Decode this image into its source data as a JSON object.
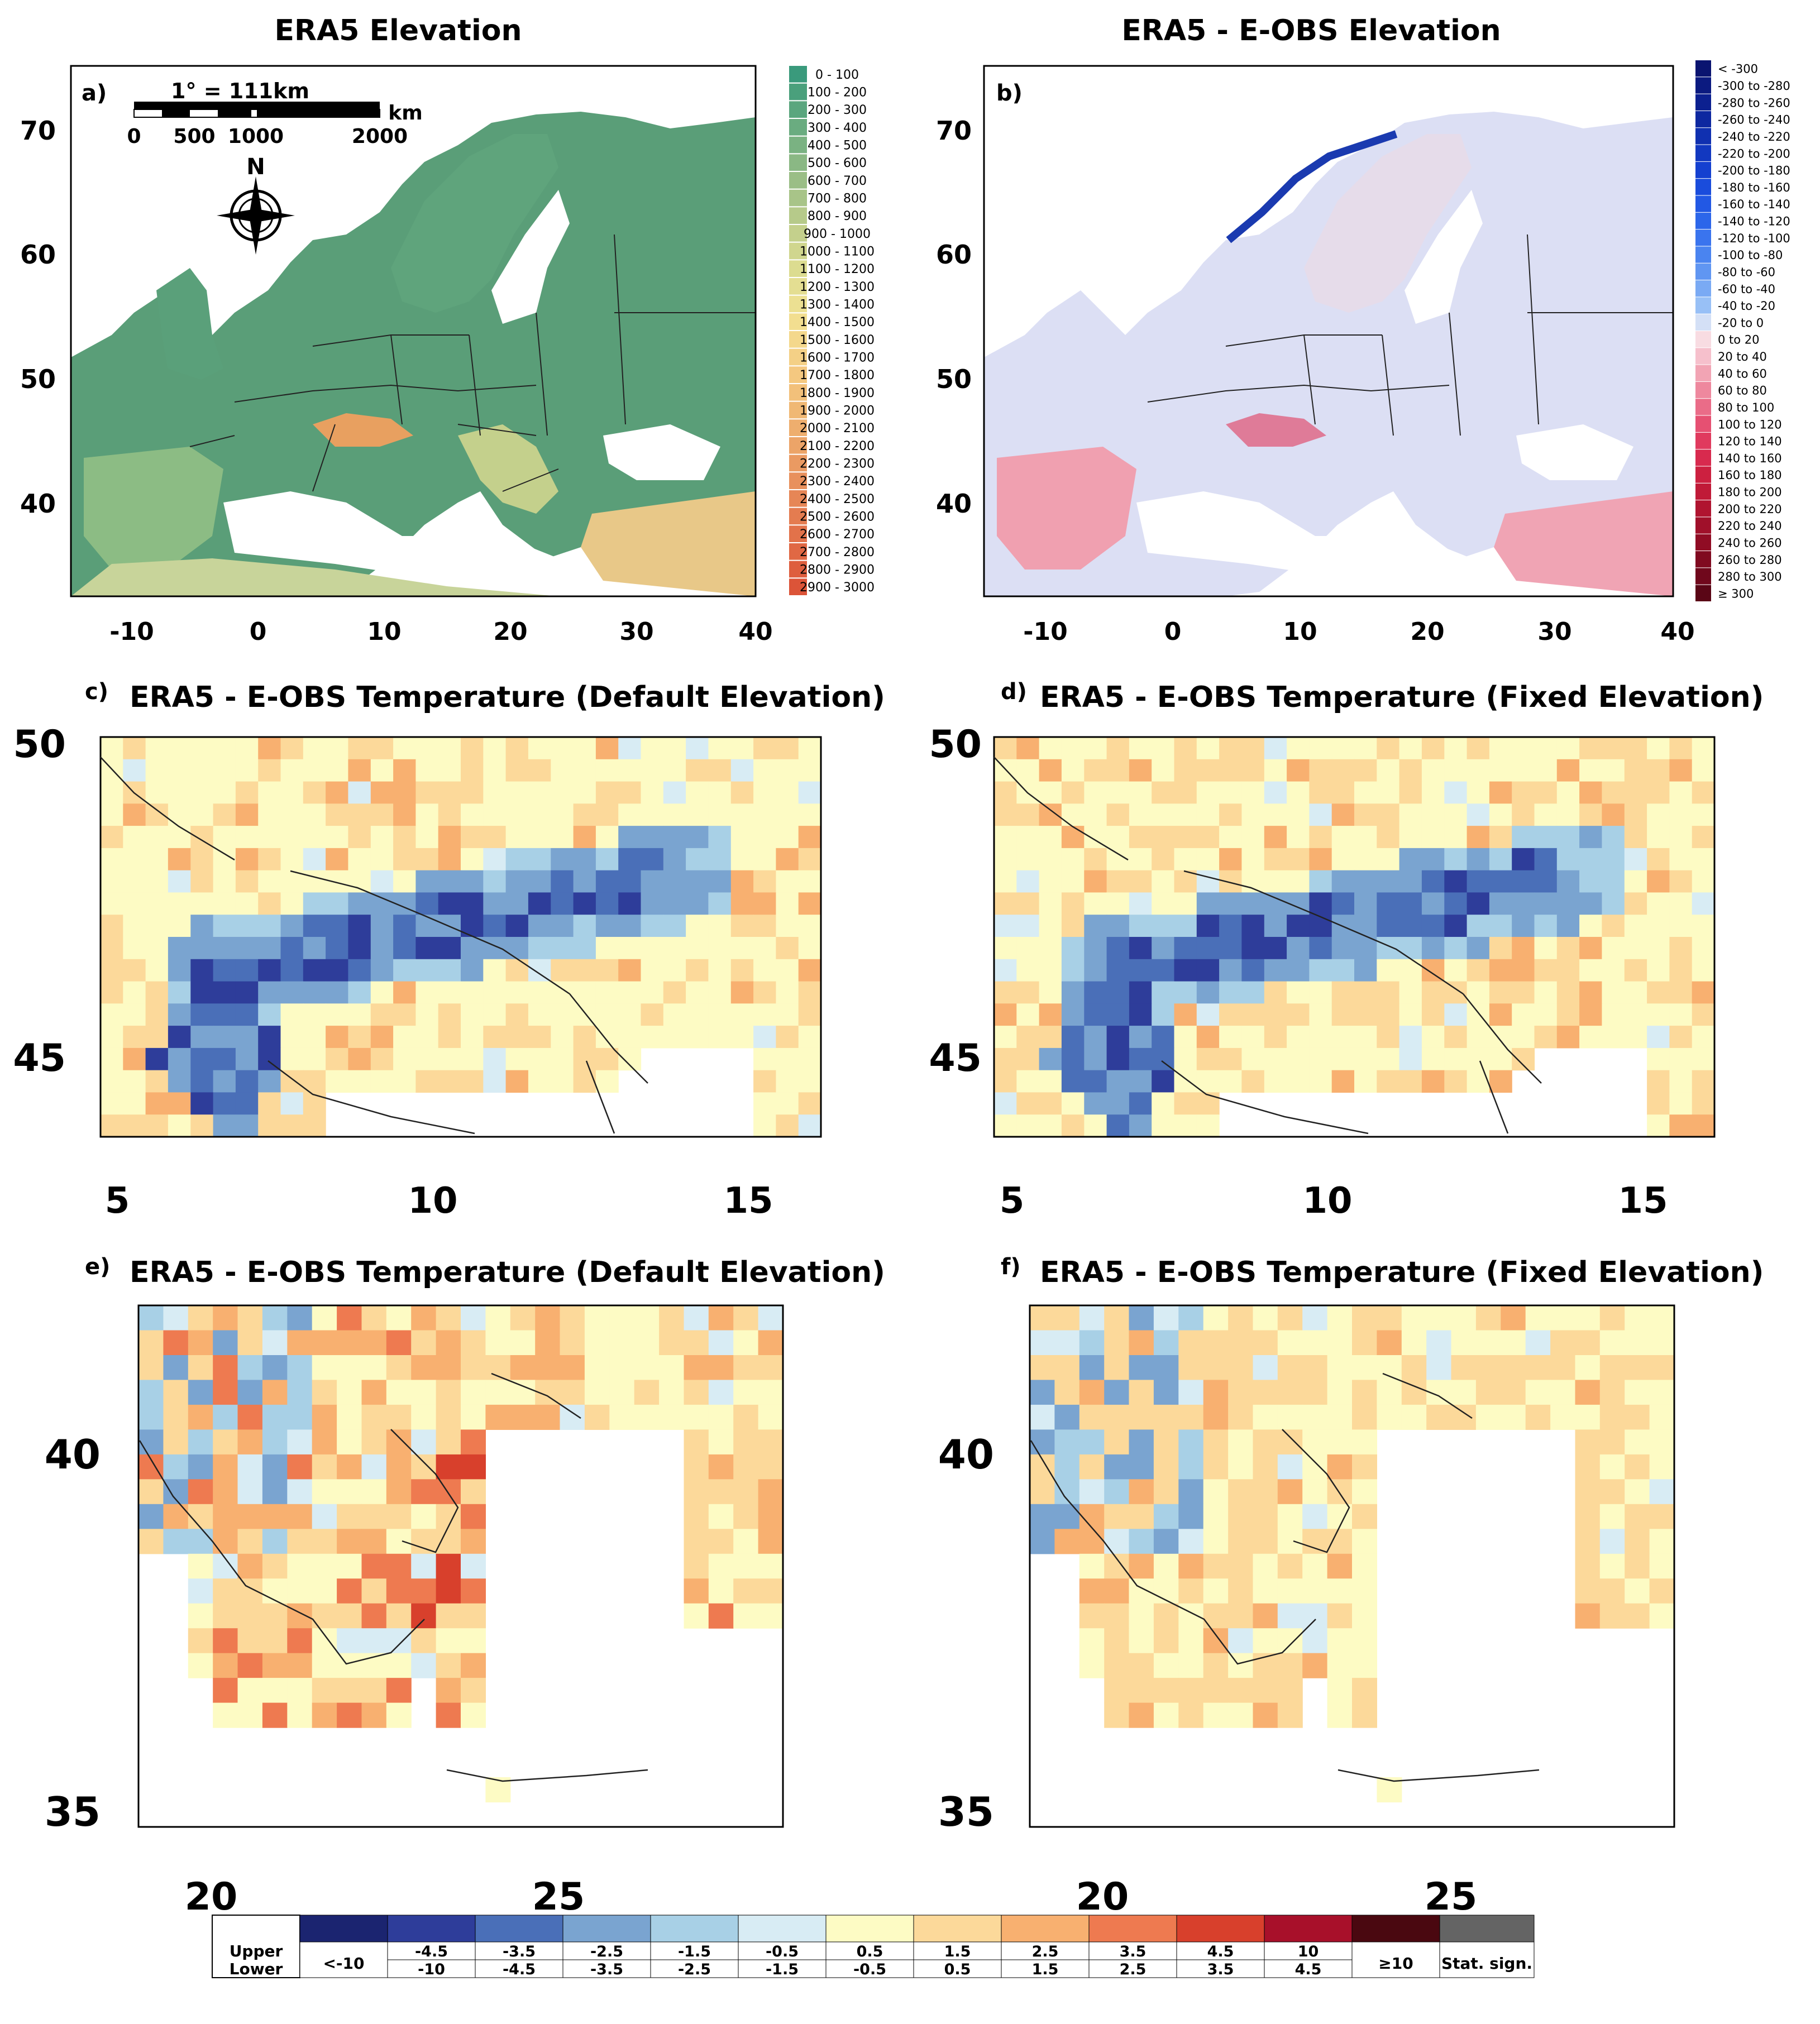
{
  "panels": [
    {
      "id": "a",
      "letter": "a)",
      "title": "ERA5 Elevation",
      "kind": "elev",
      "xticks": [
        "-10",
        "0",
        "10",
        "20",
        "30",
        "40"
      ],
      "yticks": [
        "70",
        "60",
        "50",
        "40"
      ],
      "scalebar": {
        "title": "1° = 111km",
        "unit": "km",
        "labels": [
          "0",
          "500",
          "1000",
          "2000"
        ]
      },
      "north": "N"
    },
    {
      "id": "b",
      "letter": "b)",
      "title": "ERA5 - E-OBS Elevation",
      "kind": "diff",
      "xticks": [
        "-10",
        "0",
        "10",
        "20",
        "30",
        "40"
      ],
      "yticks": [
        "70",
        "60",
        "50",
        "40"
      ]
    },
    {
      "id": "c",
      "letter": "c)",
      "title": "ERA5 - E-OBS Temperature (Default Elevation)",
      "kind": "alps",
      "xticks": [
        "5",
        "10",
        "15"
      ],
      "yticks": [
        "50",
        "45"
      ]
    },
    {
      "id": "d",
      "letter": "d)",
      "title": "ERA5 - E-OBS Temperature (Fixed Elevation)",
      "kind": "alps",
      "xticks": [
        "5",
        "10",
        "15"
      ],
      "yticks": [
        "50",
        "45"
      ]
    },
    {
      "id": "e",
      "letter": "e)",
      "title": "ERA5 - E-OBS Temperature (Default Elevation)",
      "kind": "greece",
      "xticks": [
        "20",
        "25"
      ],
      "yticks": [
        "40",
        "35"
      ]
    },
    {
      "id": "f",
      "letter": "f)",
      "title": "ERA5 - E-OBS Temperature (Fixed Elevation)",
      "kind": "greece",
      "xticks": [
        "20",
        "25"
      ],
      "yticks": [
        "40",
        "35"
      ]
    }
  ],
  "elev_legend": [
    "0 - 100",
    "100 - 200",
    "200 - 300",
    "300 - 400",
    "400 - 500",
    "500 - 600",
    "600 - 700",
    "700 - 800",
    "800 - 900",
    "900 - 1000",
    "1000 - 1100",
    "1100 - 1200",
    "1200 - 1300",
    "1300 - 1400",
    "1400 - 1500",
    "1500 - 1600",
    "1600 - 1700",
    "1700 - 1800",
    "1800 - 1900",
    "1900 - 2000",
    "2000 - 2100",
    "2100 - 2200",
    "2200 - 2300",
    "2300 - 2400",
    "2400 - 2500",
    "2500 - 2600",
    "2600 - 2700",
    "2700 - 2800",
    "2800 - 2900",
    "2900 - 3000"
  ],
  "elev_colors": [
    "#3a9a7c",
    "#4aa07c",
    "#5aa67e",
    "#6aac80",
    "#7ab282",
    "#8ab884",
    "#9abe86",
    "#a8c488",
    "#b6ca8a",
    "#c4d08c",
    "#d0d68e",
    "#dcdc90",
    "#e4de92",
    "#ece092",
    "#f2de90",
    "#f4d88c",
    "#f4d086",
    "#f4c880",
    "#f2c07a",
    "#f0b874",
    "#eeae6e",
    "#eca468",
    "#ea9a62",
    "#e8905c",
    "#e68656",
    "#e47c50",
    "#e2724a",
    "#e06844",
    "#de5e3e",
    "#dc5438"
  ],
  "diff_legend": [
    "< -300",
    "-300 to -280",
    "-280 to -260",
    "-260 to -240",
    "-240 to -220",
    "-220 to -200",
    "-200 to -180",
    "-180 to -160",
    "-160 to -140",
    "-140 to -120",
    "-120 to -100",
    "-100 to -80",
    "-80 to -60",
    "-60 to -40",
    "-40 to -20",
    "-20 to 0",
    "0 to 20",
    "20 to 40",
    "40 to 60",
    "60 to 80",
    "80 to 100",
    "100 to 120",
    "120 to 140",
    "140 to 160",
    "160 to 180",
    "180 to 200",
    "200 to 220",
    "220 to 240",
    "240 to 260",
    "260 to 280",
    "280 to 300",
    "≥ 300"
  ],
  "diff_colors": [
    "#0a1470",
    "#0b1a80",
    "#0c2090",
    "#0e28a0",
    "#1030b0",
    "#1238c0",
    "#1440d0",
    "#1a4cdc",
    "#2258e4",
    "#2c66ea",
    "#3a74ee",
    "#4a84f0",
    "#6096f2",
    "#7aaaf4",
    "#98c0f6",
    "#d4e0f6",
    "#f8dce2",
    "#f6c0cc",
    "#f2a4b4",
    "#ee889e",
    "#ea6c88",
    "#e65072",
    "#e03a5e",
    "#d82a4e",
    "#cc2040",
    "#c01a38",
    "#b01430",
    "#a0102a",
    "#900c24",
    "#800a20",
    "#70081c",
    "#5a0616"
  ],
  "temp_legend": {
    "upper_label": "Upper",
    "lower_label": "Lower",
    "first": "<-10",
    "upper": [
      "-4.5",
      "-3.5",
      "-2.5",
      "-1.5",
      "-0.5",
      "0.5",
      "1.5",
      "2.5",
      "3.5",
      "4.5",
      "10"
    ],
    "lower": [
      "-10",
      "-4.5",
      "-3.5",
      "-2.5",
      "-1.5",
      "-0.5",
      "0.5",
      "1.5",
      "2.5",
      "3.5",
      "4.5"
    ],
    "ge10": "≥10",
    "stat": "Stat. sign.",
    "colors": [
      "#1b2470",
      "#2e3d9a",
      "#4a6fb8",
      "#7aa4d0",
      "#a8d0e6",
      "#d8ecf4",
      "#fdfbc4",
      "#fcd99a",
      "#f8b070",
      "#ee7a50",
      "#d8402c",
      "#a8102a",
      "#4a0810",
      "#646464"
    ]
  }
}
